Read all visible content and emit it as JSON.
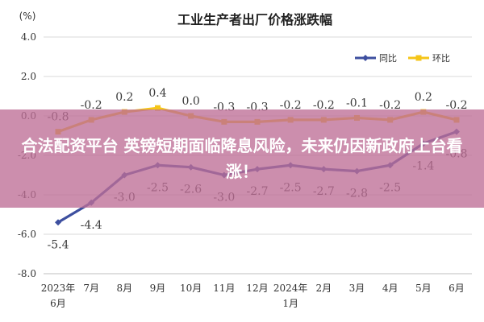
{
  "banner": {
    "text": "合法配资平台 英镑短期面临降息风险，未来仍因新政府上台看涨！"
  },
  "chart_data": {
    "type": "line",
    "title": "工业生产者出厂价格涨跌幅",
    "unit_label": "(%)",
    "categories": [
      [
        "2023年",
        "6月"
      ],
      [
        "7月"
      ],
      [
        "8月"
      ],
      [
        "9月"
      ],
      [
        "10月"
      ],
      [
        "11月"
      ],
      [
        "12月"
      ],
      [
        "2024年",
        "1月"
      ],
      [
        "2月"
      ],
      [
        "3月"
      ],
      [
        "4月"
      ],
      [
        "5月"
      ],
      [
        "6月"
      ]
    ],
    "ylim": [
      -8.0,
      4.0
    ],
    "yticks": [
      "4.0",
      "2.0",
      "0.0",
      "-2.0",
      "-4.0",
      "-6.0",
      "-8.0"
    ],
    "series": [
      {
        "name": "同比",
        "color": "#3d4f9f",
        "values": [
          -5.4,
          -4.4,
          -3.0,
          -2.5,
          -2.6,
          -3.0,
          -2.7,
          -2.5,
          -2.7,
          -2.8,
          -2.5,
          -1.4,
          -0.8
        ],
        "labels": [
          "-5.4",
          "-4.4",
          "-3.0",
          "-2.5",
          "-2.6",
          "-3.0",
          "-2.7",
          "-2.5",
          "-2.7",
          "-2.8",
          "-2.5",
          "-1.4",
          "-0.8"
        ]
      },
      {
        "name": "环比",
        "color": "#f5c518",
        "values": [
          -0.8,
          -0.2,
          0.2,
          0.4,
          0.0,
          -0.3,
          -0.3,
          -0.2,
          -0.2,
          -0.1,
          -0.2,
          0.2,
          -0.2
        ],
        "labels": [
          "-0.8",
          "-0.2",
          "0.2",
          "0.4",
          "0.0",
          "-0.3",
          "-0.3",
          "-0.2",
          "-0.2",
          "-0.1",
          "-0.2",
          "0.2",
          "-0.2"
        ]
      }
    ],
    "grid": true,
    "legend_position": "top-right"
  }
}
